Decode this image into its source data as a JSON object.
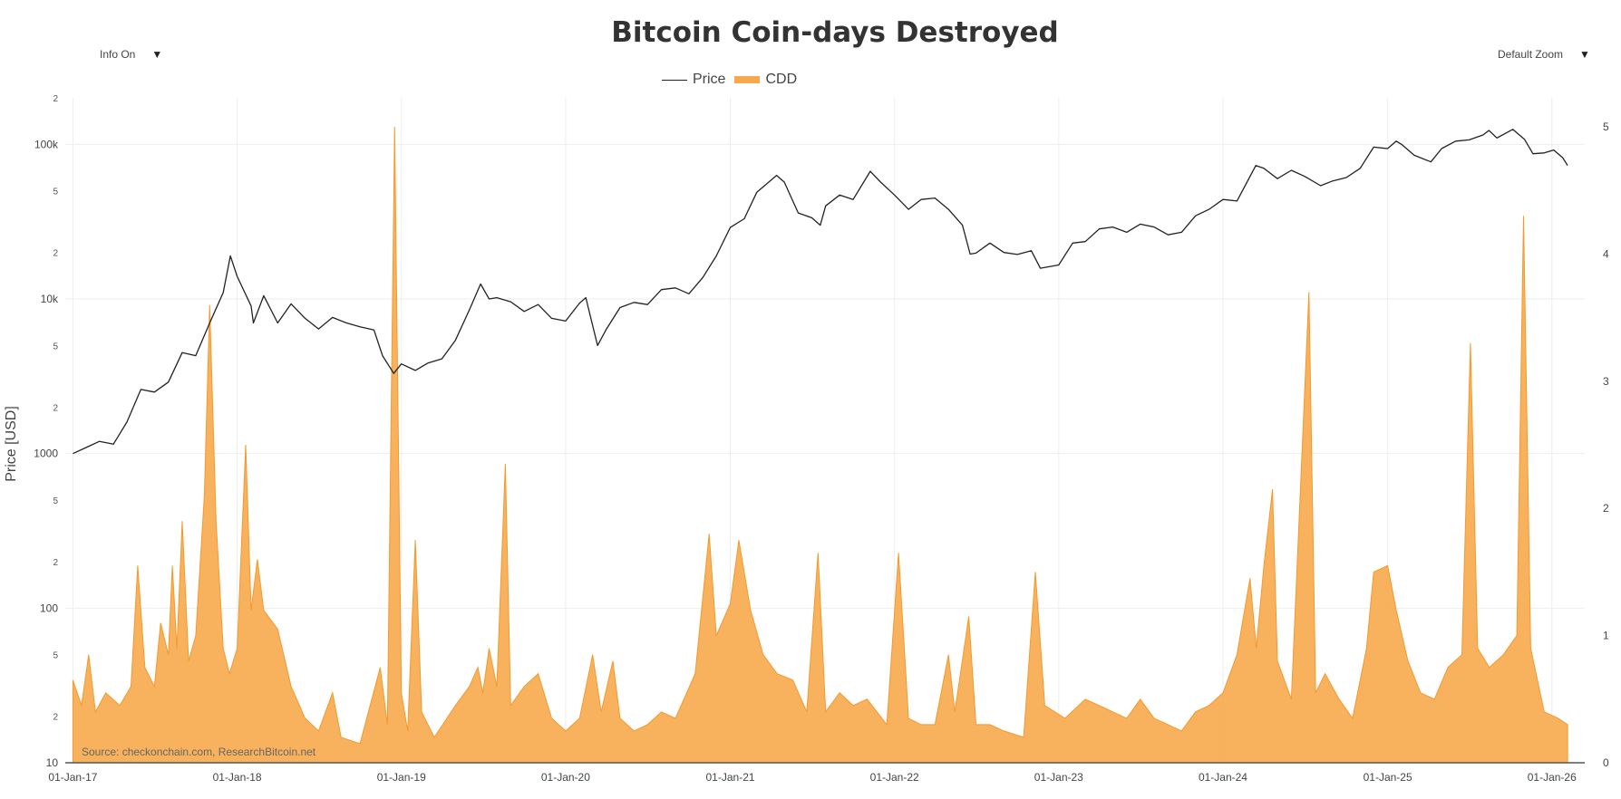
{
  "controls": {
    "info_label": "Info On",
    "zoom_label": "Default Zoom",
    "caret": "▼"
  },
  "chart_data": {
    "type": "line",
    "title": "Bitcoin Coin-days Destroyed",
    "legend": {
      "placement": "top-center",
      "entries": [
        "Price",
        "CDD"
      ]
    },
    "ylabel": "Price [USD]",
    "y2label": "",
    "y_scale": "log",
    "ylim": [
      10,
      200000
    ],
    "y2lim": [
      0,
      5
    ],
    "y_major_ticks": [
      {
        "value": 10,
        "label": "10"
      },
      {
        "value": 100,
        "label": "100"
      },
      {
        "value": 1000,
        "label": "1000"
      },
      {
        "value": 10000,
        "label": "10k"
      },
      {
        "value": 100000,
        "label": "100k"
      }
    ],
    "y_minor_ticks": [
      {
        "value": 20,
        "label": "2"
      },
      {
        "value": 50,
        "label": "5"
      },
      {
        "value": 200,
        "label": "2"
      },
      {
        "value": 500,
        "label": "5"
      },
      {
        "value": 2000,
        "label": "2"
      },
      {
        "value": 5000,
        "label": "5"
      },
      {
        "value": 20000,
        "label": "2"
      },
      {
        "value": 50000,
        "label": "5"
      },
      {
        "value": 200000,
        "label": "2"
      }
    ],
    "y2_ticks": [
      "0",
      "1",
      "2",
      "3",
      "4",
      "5"
    ],
    "x_ticks": [
      "01-Jan-17",
      "01-Jan-18",
      "01-Jan-19",
      "01-Jan-20",
      "01-Jan-21",
      "01-Jan-22",
      "01-Jan-23",
      "01-Jan-24",
      "01-Jan-25",
      "01-Jan-26"
    ],
    "xlim": [
      "2016-12-15",
      "2026-03-15"
    ],
    "grid": true,
    "source": "Source: checkonchain.com, ResearchBitcoin.net",
    "series": [
      {
        "name": "Price",
        "color": "#222222",
        "axis": "left",
        "points": [
          [
            "2017-01-01",
            1000
          ],
          [
            "2017-02-01",
            1100
          ],
          [
            "2017-03-01",
            1200
          ],
          [
            "2017-04-01",
            1150
          ],
          [
            "2017-05-01",
            1600
          ],
          [
            "2017-06-01",
            2600
          ],
          [
            "2017-07-01",
            2500
          ],
          [
            "2017-08-01",
            2900
          ],
          [
            "2017-09-01",
            4500
          ],
          [
            "2017-10-01",
            4300
          ],
          [
            "2017-11-01",
            7000
          ],
          [
            "2017-12-01",
            11000
          ],
          [
            "2017-12-17",
            19000
          ],
          [
            "2018-01-01",
            14000
          ],
          [
            "2018-02-01",
            9000
          ],
          [
            "2018-02-06",
            7000
          ],
          [
            "2018-03-01",
            10500
          ],
          [
            "2018-04-01",
            7000
          ],
          [
            "2018-05-01",
            9300
          ],
          [
            "2018-06-01",
            7500
          ],
          [
            "2018-07-01",
            6400
          ],
          [
            "2018-08-01",
            7600
          ],
          [
            "2018-09-01",
            7000
          ],
          [
            "2018-10-01",
            6600
          ],
          [
            "2018-11-01",
            6300
          ],
          [
            "2018-11-20",
            4300
          ],
          [
            "2018-12-15",
            3300
          ],
          [
            "2019-01-01",
            3800
          ],
          [
            "2019-02-01",
            3450
          ],
          [
            "2019-03-01",
            3850
          ],
          [
            "2019-04-01",
            4100
          ],
          [
            "2019-05-01",
            5400
          ],
          [
            "2019-06-01",
            8500
          ],
          [
            "2019-06-26",
            12500
          ],
          [
            "2019-07-15",
            10000
          ],
          [
            "2019-08-01",
            10200
          ],
          [
            "2019-09-01",
            9600
          ],
          [
            "2019-10-01",
            8300
          ],
          [
            "2019-11-01",
            9200
          ],
          [
            "2019-12-01",
            7500
          ],
          [
            "2020-01-01",
            7200
          ],
          [
            "2020-02-01",
            9400
          ],
          [
            "2020-02-15",
            10200
          ],
          [
            "2020-03-12",
            5000
          ],
          [
            "2020-04-01",
            6400
          ],
          [
            "2020-05-01",
            8800
          ],
          [
            "2020-06-01",
            9500
          ],
          [
            "2020-07-01",
            9200
          ],
          [
            "2020-08-01",
            11500
          ],
          [
            "2020-09-01",
            11800
          ],
          [
            "2020-10-01",
            10800
          ],
          [
            "2020-11-01",
            13800
          ],
          [
            "2020-12-01",
            19000
          ],
          [
            "2021-01-01",
            29000
          ],
          [
            "2021-02-01",
            33000
          ],
          [
            "2021-03-01",
            49000
          ],
          [
            "2021-04-14",
            63000
          ],
          [
            "2021-05-01",
            57000
          ],
          [
            "2021-06-01",
            36000
          ],
          [
            "2021-07-01",
            33500
          ],
          [
            "2021-07-20",
            30000
          ],
          [
            "2021-08-01",
            40000
          ],
          [
            "2021-09-01",
            47000
          ],
          [
            "2021-10-01",
            44000
          ],
          [
            "2021-11-08",
            67000
          ],
          [
            "2021-12-01",
            57000
          ],
          [
            "2022-01-01",
            47000
          ],
          [
            "2022-02-01",
            38000
          ],
          [
            "2022-03-01",
            44000
          ],
          [
            "2022-04-01",
            45000
          ],
          [
            "2022-05-01",
            38000
          ],
          [
            "2022-06-01",
            30000
          ],
          [
            "2022-06-18",
            19500
          ],
          [
            "2022-07-01",
            19800
          ],
          [
            "2022-08-01",
            23000
          ],
          [
            "2022-09-01",
            20000
          ],
          [
            "2022-10-01",
            19400
          ],
          [
            "2022-11-01",
            20500
          ],
          [
            "2022-11-21",
            15800
          ],
          [
            "2023-01-01",
            16600
          ],
          [
            "2023-02-01",
            23000
          ],
          [
            "2023-03-01",
            23500
          ],
          [
            "2023-04-01",
            28400
          ],
          [
            "2023-05-01",
            29200
          ],
          [
            "2023-06-01",
            27000
          ],
          [
            "2023-07-01",
            30500
          ],
          [
            "2023-08-01",
            29200
          ],
          [
            "2023-09-01",
            26000
          ],
          [
            "2023-10-01",
            27000
          ],
          [
            "2023-11-01",
            34500
          ],
          [
            "2023-12-01",
            38000
          ],
          [
            "2024-01-01",
            44000
          ],
          [
            "2024-02-01",
            43000
          ],
          [
            "2024-03-14",
            73000
          ],
          [
            "2024-04-01",
            70000
          ],
          [
            "2024-05-01",
            60000
          ],
          [
            "2024-06-01",
            68000
          ],
          [
            "2024-07-01",
            62000
          ],
          [
            "2024-08-05",
            54000
          ],
          [
            "2024-09-01",
            58000
          ],
          [
            "2024-10-01",
            61000
          ],
          [
            "2024-11-01",
            70000
          ],
          [
            "2024-12-01",
            96000
          ],
          [
            "2025-01-01",
            94000
          ],
          [
            "2025-01-20",
            105000
          ],
          [
            "2025-02-01",
            100000
          ],
          [
            "2025-03-01",
            85000
          ],
          [
            "2025-04-07",
            77000
          ],
          [
            "2025-05-01",
            94000
          ],
          [
            "2025-06-01",
            105000
          ],
          [
            "2025-07-01",
            107000
          ],
          [
            "2025-08-01",
            115000
          ],
          [
            "2025-08-14",
            123000
          ],
          [
            "2025-09-01",
            110000
          ],
          [
            "2025-10-06",
            125000
          ],
          [
            "2025-11-01",
            108000
          ],
          [
            "2025-11-20",
            87000
          ],
          [
            "2025-12-15",
            88000
          ],
          [
            "2026-01-05",
            92000
          ],
          [
            "2026-01-25",
            82000
          ],
          [
            "2026-02-05",
            73000
          ]
        ]
      },
      {
        "name": "CDD",
        "color": "#f7a94b",
        "axis": "right",
        "type": "area",
        "points": [
          [
            "2017-01-01",
            0.65
          ],
          [
            "2017-01-20",
            0.45
          ],
          [
            "2017-02-05",
            0.85
          ],
          [
            "2017-02-20",
            0.4
          ],
          [
            "2017-03-15",
            0.55
          ],
          [
            "2017-04-15",
            0.45
          ],
          [
            "2017-05-10",
            0.6
          ],
          [
            "2017-05-25",
            1.55
          ],
          [
            "2017-06-10",
            0.75
          ],
          [
            "2017-07-01",
            0.6
          ],
          [
            "2017-07-15",
            1.1
          ],
          [
            "2017-08-01",
            0.85
          ],
          [
            "2017-08-10",
            1.55
          ],
          [
            "2017-08-20",
            0.9
          ],
          [
            "2017-09-01",
            1.9
          ],
          [
            "2017-09-15",
            0.8
          ],
          [
            "2017-10-01",
            1.0
          ],
          [
            "2017-10-20",
            2.1
          ],
          [
            "2017-11-01",
            3.6
          ],
          [
            "2017-11-15",
            1.9
          ],
          [
            "2017-12-01",
            0.9
          ],
          [
            "2017-12-15",
            0.7
          ],
          [
            "2018-01-01",
            0.9
          ],
          [
            "2018-01-20",
            2.5
          ],
          [
            "2018-02-01",
            1.2
          ],
          [
            "2018-02-15",
            1.6
          ],
          [
            "2018-03-01",
            1.2
          ],
          [
            "2018-04-01",
            1.05
          ],
          [
            "2018-05-01",
            0.6
          ],
          [
            "2018-06-01",
            0.35
          ],
          [
            "2018-07-01",
            0.25
          ],
          [
            "2018-08-01",
            0.55
          ],
          [
            "2018-08-20",
            0.2
          ],
          [
            "2018-10-01",
            0.15
          ],
          [
            "2018-11-15",
            0.75
          ],
          [
            "2018-12-01",
            0.3
          ],
          [
            "2018-12-17",
            5.0
          ],
          [
            "2019-01-01",
            0.55
          ],
          [
            "2019-01-15",
            0.25
          ],
          [
            "2019-02-01",
            1.75
          ],
          [
            "2019-02-15",
            0.4
          ],
          [
            "2019-03-15",
            0.2
          ],
          [
            "2019-05-01",
            0.45
          ],
          [
            "2019-06-01",
            0.6
          ],
          [
            "2019-06-20",
            0.75
          ],
          [
            "2019-07-01",
            0.55
          ],
          [
            "2019-07-15",
            0.9
          ],
          [
            "2019-08-01",
            0.6
          ],
          [
            "2019-08-20",
            2.35
          ],
          [
            "2019-09-01",
            0.45
          ],
          [
            "2019-10-01",
            0.6
          ],
          [
            "2019-11-01",
            0.7
          ],
          [
            "2019-12-01",
            0.35
          ],
          [
            "2020-01-01",
            0.25
          ],
          [
            "2020-02-01",
            0.35
          ],
          [
            "2020-03-01",
            0.85
          ],
          [
            "2020-03-20",
            0.4
          ],
          [
            "2020-04-15",
            0.8
          ],
          [
            "2020-05-01",
            0.35
          ],
          [
            "2020-06-01",
            0.25
          ],
          [
            "2020-07-01",
            0.3
          ],
          [
            "2020-08-01",
            0.4
          ],
          [
            "2020-09-01",
            0.35
          ],
          [
            "2020-10-15",
            0.7
          ],
          [
            "2020-11-15",
            1.8
          ],
          [
            "2020-12-01",
            1.0
          ],
          [
            "2021-01-01",
            1.25
          ],
          [
            "2021-01-20",
            1.75
          ],
          [
            "2021-02-15",
            1.2
          ],
          [
            "2021-03-15",
            0.85
          ],
          [
            "2021-04-15",
            0.7
          ],
          [
            "2021-05-20",
            0.65
          ],
          [
            "2021-06-20",
            0.4
          ],
          [
            "2021-07-15",
            1.65
          ],
          [
            "2021-08-01",
            0.4
          ],
          [
            "2021-09-01",
            0.55
          ],
          [
            "2021-10-01",
            0.45
          ],
          [
            "2021-11-01",
            0.5
          ],
          [
            "2021-12-15",
            0.3
          ],
          [
            "2022-01-10",
            1.65
          ],
          [
            "2022-02-01",
            0.35
          ],
          [
            "2022-03-01",
            0.3
          ],
          [
            "2022-04-01",
            0.3
          ],
          [
            "2022-05-01",
            0.85
          ],
          [
            "2022-05-15",
            0.4
          ],
          [
            "2022-06-15",
            1.15
          ],
          [
            "2022-07-01",
            0.3
          ],
          [
            "2022-08-01",
            0.3
          ],
          [
            "2022-09-01",
            0.25
          ],
          [
            "2022-10-15",
            0.2
          ],
          [
            "2022-11-10",
            1.5
          ],
          [
            "2022-12-01",
            0.45
          ],
          [
            "2023-01-15",
            0.35
          ],
          [
            "2023-03-01",
            0.5
          ],
          [
            "2023-04-01",
            0.45
          ],
          [
            "2023-05-01",
            0.4
          ],
          [
            "2023-06-01",
            0.35
          ],
          [
            "2023-07-01",
            0.5
          ],
          [
            "2023-08-01",
            0.35
          ],
          [
            "2023-09-01",
            0.3
          ],
          [
            "2023-10-01",
            0.25
          ],
          [
            "2023-11-01",
            0.4
          ],
          [
            "2023-12-01",
            0.45
          ],
          [
            "2024-01-01",
            0.55
          ],
          [
            "2024-02-01",
            0.85
          ],
          [
            "2024-03-01",
            1.45
          ],
          [
            "2024-03-15",
            0.9
          ],
          [
            "2024-04-01",
            1.55
          ],
          [
            "2024-04-20",
            2.15
          ],
          [
            "2024-05-01",
            0.8
          ],
          [
            "2024-06-01",
            0.5
          ],
          [
            "2024-07-10",
            3.7
          ],
          [
            "2024-07-25",
            0.55
          ],
          [
            "2024-08-15",
            0.7
          ],
          [
            "2024-09-15",
            0.5
          ],
          [
            "2024-10-15",
            0.35
          ],
          [
            "2024-11-15",
            0.9
          ],
          [
            "2024-12-01",
            1.5
          ],
          [
            "2025-01-01",
            1.55
          ],
          [
            "2025-01-20",
            1.2
          ],
          [
            "2025-02-15",
            0.8
          ],
          [
            "2025-03-15",
            0.55
          ],
          [
            "2025-04-15",
            0.5
          ],
          [
            "2025-05-15",
            0.75
          ],
          [
            "2025-06-15",
            0.85
          ],
          [
            "2025-07-04",
            3.3
          ],
          [
            "2025-07-20",
            0.9
          ],
          [
            "2025-08-15",
            0.75
          ],
          [
            "2025-09-15",
            0.85
          ],
          [
            "2025-10-15",
            1.0
          ],
          [
            "2025-10-30",
            4.3
          ],
          [
            "2025-11-15",
            0.9
          ],
          [
            "2025-12-15",
            0.4
          ],
          [
            "2026-01-15",
            0.35
          ],
          [
            "2026-02-05",
            0.3
          ]
        ]
      }
    ]
  }
}
